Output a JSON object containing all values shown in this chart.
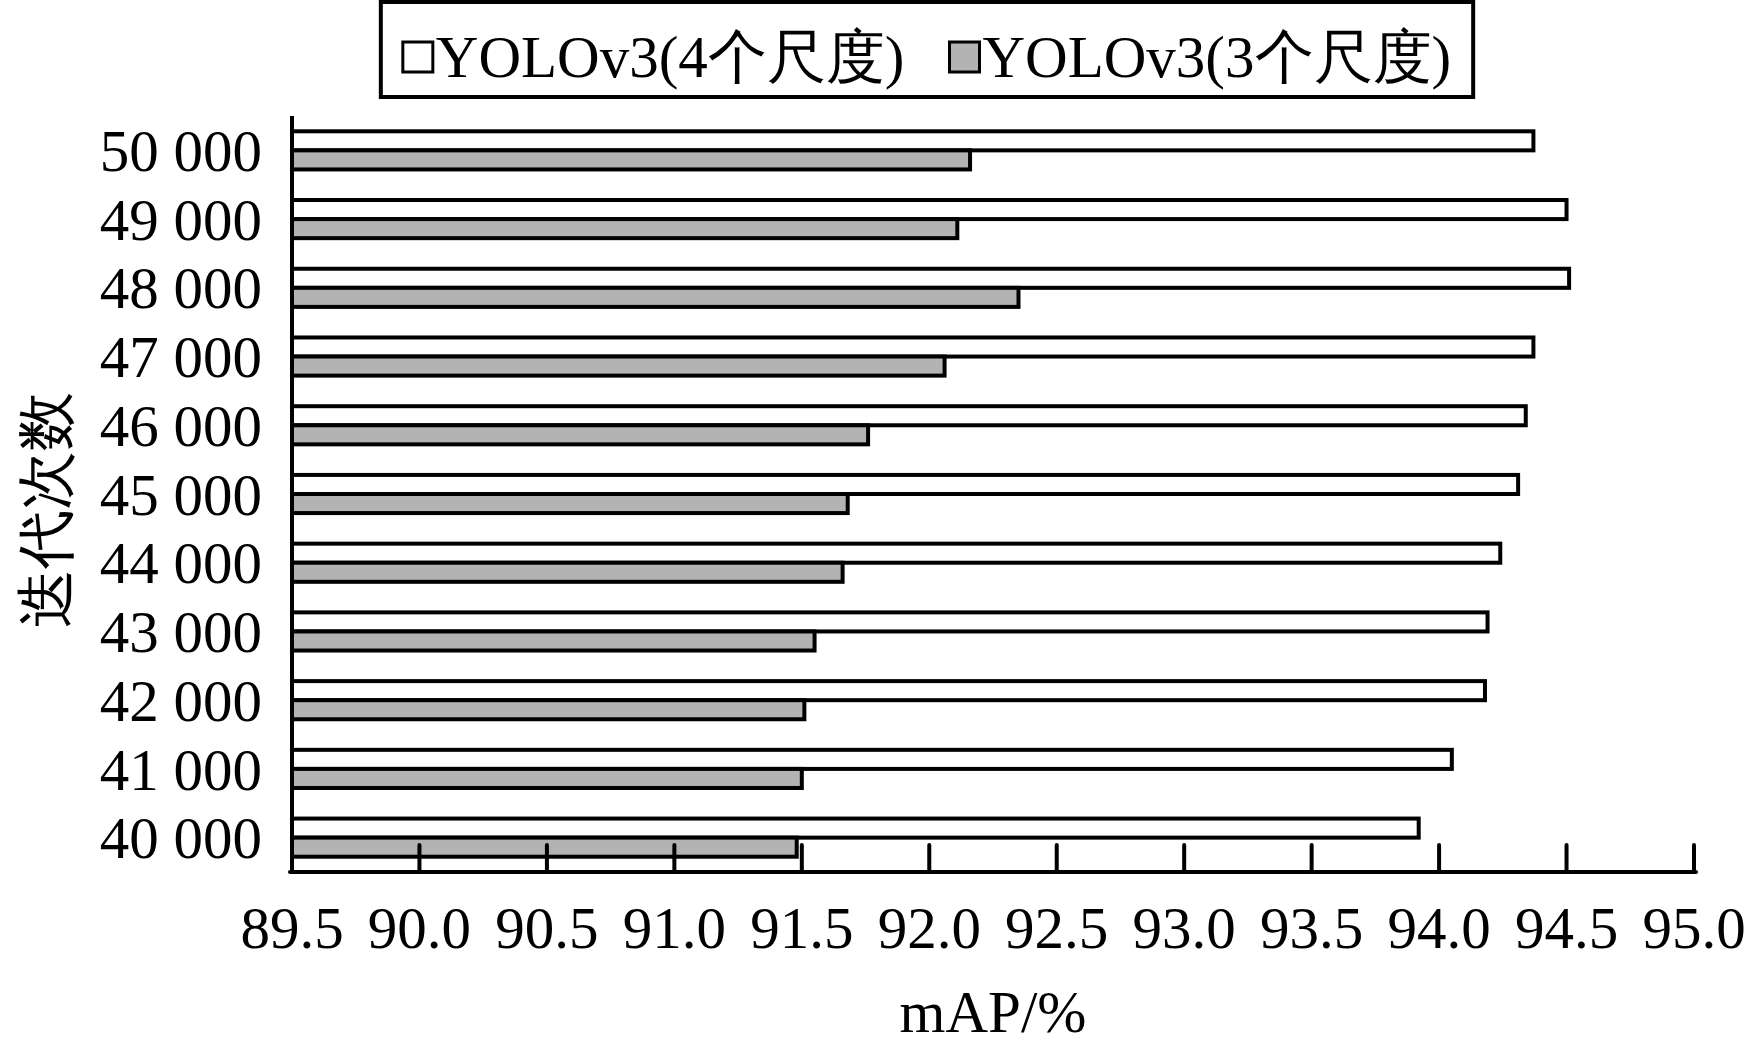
{
  "chart_data": {
    "type": "bar",
    "orientation": "horizontal",
    "xlabel": "mAP/%",
    "ylabel": "迭代次数",
    "categories": [
      "50 000",
      "49 000",
      "48 000",
      "47 000",
      "46 000",
      "45 000",
      "44 000",
      "43 000",
      "42 000",
      "41 000",
      "40 000"
    ],
    "series": [
      {
        "name": "YOLOv3(4个尺度)",
        "color": "#ffffff",
        "values": [
          94.37,
          94.5,
          94.51,
          94.37,
          94.34,
          94.31,
          94.24,
          94.19,
          94.18,
          94.05,
          93.92
        ]
      },
      {
        "name": "YOLOv3(3个尺度)",
        "color": "#b3b3b3",
        "values": [
          92.16,
          92.11,
          92.35,
          92.06,
          91.76,
          91.68,
          91.66,
          91.55,
          91.51,
          91.5,
          91.48
        ]
      }
    ],
    "xlim": [
      89.5,
      95.0
    ],
    "xticks": [
      89.5,
      {
        "value": 90,
        "label": "90.0"
      },
      90.5,
      {
        "value": 91,
        "label": "91.0"
      },
      91.5,
      {
        "value": 92,
        "label": "92.0"
      },
      92.5,
      {
        "value": 93,
        "label": "93.0"
      },
      93.5,
      {
        "value": 94,
        "label": "94.0"
      },
      94.5,
      {
        "value": 95,
        "label": "95.0"
      }
    ],
    "legend": "top"
  }
}
